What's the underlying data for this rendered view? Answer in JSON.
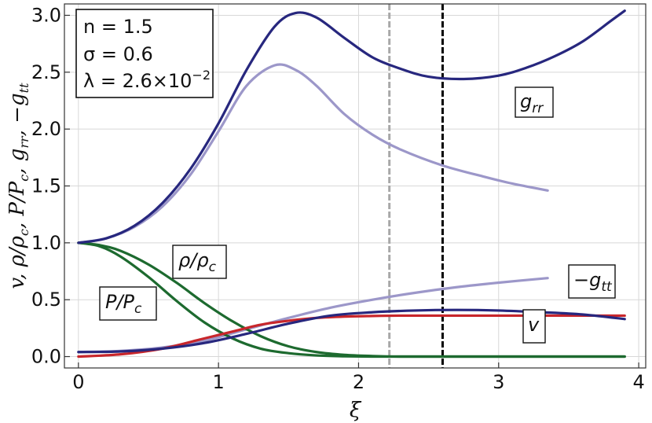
{
  "chart_data": {
    "type": "line",
    "xlabel": "ξ",
    "ylabel": "v,  ρ/ρc,  P/Pc,  grr,  −gtt",
    "ylabel_parts": [
      "v",
      "ρ/ρ",
      "c",
      "P/P",
      "c",
      "g",
      "rr",
      "−g",
      "tt"
    ],
    "xlim": [
      -0.1,
      4.05
    ],
    "ylim": [
      -0.1,
      3.1
    ],
    "x_ticks": [
      "0",
      "1",
      "2",
      "3",
      "4"
    ],
    "y_ticks": [
      "0.0",
      "0.5",
      "1.0",
      "1.5",
      "2.0",
      "2.5",
      "3.0"
    ],
    "grid": true,
    "parameters": {
      "line1": "n = 1.5",
      "line2": "σ = 0.6",
      "line3_prefix": "λ = 2.6",
      "line3_times": "×",
      "line3_base": "10",
      "line3_exp": "−2"
    },
    "vertical_lines": [
      {
        "x": 2.22,
        "color": "#a8a8a8",
        "style": "dashed"
      },
      {
        "x": 2.6,
        "color": "#000000",
        "style": "dashed"
      }
    ],
    "labels": {
      "grr_main": "g",
      "grr_sub": "rr",
      "rho_main": "ρ/ρ",
      "rho_sub": "c",
      "p_main": "P/P",
      "p_sub": "c",
      "gtt_main": "−g",
      "gtt_sub": "tt",
      "v": "v"
    },
    "colors": {
      "navy": "#27277e",
      "lavender": "#9c97c9",
      "green": "#1d6a2f",
      "red": "#c8262b"
    },
    "series": [
      {
        "key": "grr",
        "color": "#27277e",
        "x": [
          0,
          0.2,
          0.4,
          0.6,
          0.8,
          1.0,
          1.2,
          1.4,
          1.55,
          1.7,
          1.9,
          2.1,
          2.3,
          2.5,
          2.75,
          3.0,
          3.2,
          3.4,
          3.6,
          3.8,
          3.9
        ],
        "y": [
          1.0,
          1.04,
          1.15,
          1.35,
          1.65,
          2.05,
          2.52,
          2.9,
          3.02,
          2.98,
          2.8,
          2.63,
          2.53,
          2.46,
          2.44,
          2.47,
          2.54,
          2.64,
          2.77,
          2.95,
          3.04
        ]
      },
      {
        "key": "grr_light",
        "color": "#9c97c9",
        "x": [
          0,
          0.2,
          0.4,
          0.6,
          0.8,
          1.0,
          1.2,
          1.4,
          1.55,
          1.7,
          1.9,
          2.1,
          2.3,
          2.6,
          2.9,
          3.1,
          3.35
        ],
        "y": [
          1.0,
          1.04,
          1.14,
          1.32,
          1.6,
          1.98,
          2.38,
          2.56,
          2.52,
          2.38,
          2.13,
          1.95,
          1.82,
          1.68,
          1.58,
          1.52,
          1.46
        ]
      },
      {
        "key": "gtt_light",
        "color": "#9c97c9",
        "x": [
          0,
          0.3,
          0.6,
          0.9,
          1.2,
          1.5,
          1.8,
          2.1,
          2.4,
          2.7,
          3.0,
          3.35
        ],
        "y": [
          0.04,
          0.05,
          0.08,
          0.14,
          0.24,
          0.34,
          0.43,
          0.5,
          0.56,
          0.61,
          0.65,
          0.69
        ]
      },
      {
        "key": "gtt",
        "color": "#27277e",
        "x": [
          0,
          0.3,
          0.6,
          0.9,
          1.2,
          1.5,
          1.8,
          2.1,
          2.4,
          2.7,
          3.0,
          3.3,
          3.6,
          3.9
        ],
        "y": [
          0.04,
          0.045,
          0.07,
          0.12,
          0.2,
          0.29,
          0.36,
          0.39,
          0.405,
          0.41,
          0.405,
          0.39,
          0.37,
          0.33
        ]
      },
      {
        "key": "v",
        "color": "#c8262b",
        "x": [
          0,
          0.3,
          0.6,
          0.9,
          1.1,
          1.3,
          1.5,
          1.7,
          1.9,
          2.1,
          2.3,
          2.6,
          3.0,
          3.5,
          3.9
        ],
        "y": [
          0.0,
          0.02,
          0.07,
          0.16,
          0.22,
          0.28,
          0.315,
          0.34,
          0.352,
          0.357,
          0.36,
          0.36,
          0.36,
          0.36,
          0.36
        ]
      },
      {
        "key": "rho",
        "color": "#1d6a2f",
        "x": [
          0,
          0.15,
          0.3,
          0.5,
          0.7,
          0.9,
          1.1,
          1.3,
          1.5,
          1.7,
          1.9,
          2.1,
          2.3,
          2.6,
          3.0,
          3.5,
          3.9
        ],
        "y": [
          1.0,
          0.98,
          0.93,
          0.81,
          0.65,
          0.47,
          0.31,
          0.18,
          0.09,
          0.04,
          0.015,
          0.005,
          0.0,
          0.0,
          0.0,
          0.0,
          0.0
        ]
      },
      {
        "key": "p",
        "color": "#1d6a2f",
        "x": [
          0,
          0.15,
          0.3,
          0.5,
          0.7,
          0.9,
          1.1,
          1.3,
          1.5,
          1.7,
          1.9,
          2.1,
          2.3,
          2.6,
          3.0,
          3.5,
          3.9
        ],
        "y": [
          1.0,
          0.97,
          0.88,
          0.7,
          0.49,
          0.3,
          0.16,
          0.07,
          0.03,
          0.01,
          0.003,
          0.0,
          0.0,
          0.0,
          0.0,
          0.0,
          0.0
        ]
      }
    ]
  }
}
